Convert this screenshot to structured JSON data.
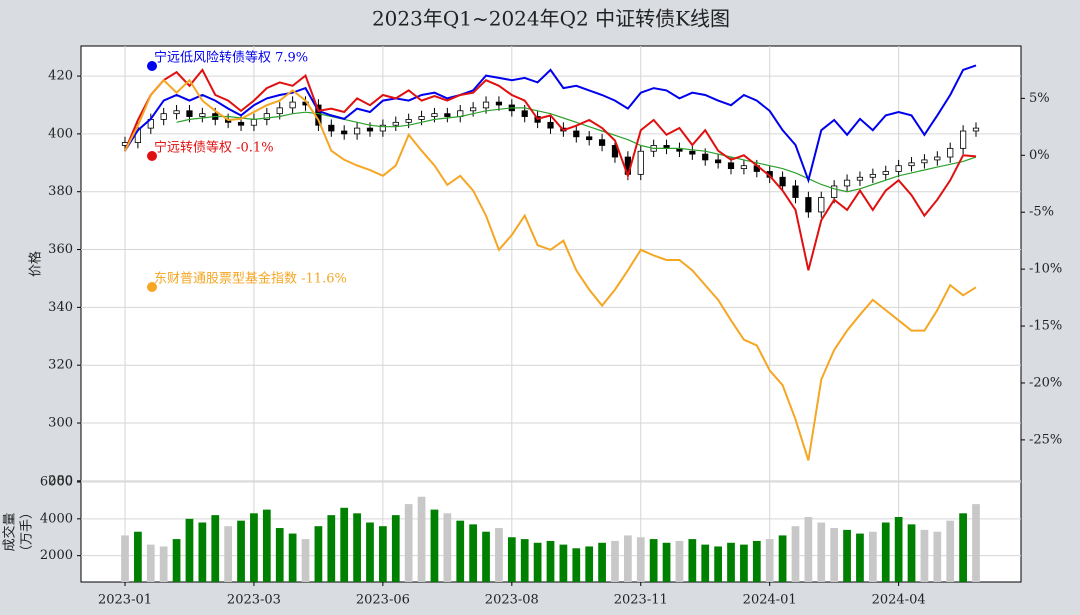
{
  "chart_data": {
    "type": "kline",
    "title": "2023年Q1~2024年Q2 中证转债K线图",
    "ylabel": "价格",
    "y3label": [
      "成交量",
      "（万手）"
    ],
    "categories": [
      "2023-01",
      null,
      null,
      null,
      null,
      null,
      null,
      null,
      null,
      null,
      "2023-03",
      null,
      null,
      null,
      null,
      null,
      null,
      null,
      null,
      null,
      "2023-06",
      null,
      null,
      null,
      null,
      null,
      null,
      null,
      null,
      null,
      "2023-08",
      null,
      null,
      null,
      null,
      null,
      null,
      null,
      null,
      null,
      "2023-11",
      null,
      null,
      null,
      null,
      null,
      null,
      null,
      null,
      null,
      "2024-01",
      null,
      null,
      null,
      null,
      null,
      null,
      null,
      null,
      null,
      "2024-04",
      null,
      null,
      null,
      null,
      null,
      null
    ],
    "ylim": [
      279.6,
      430.4
    ],
    "yticks": [
      280,
      300,
      320,
      340,
      360,
      380,
      400,
      420
    ],
    "y2lim": [
      -28.7,
      9.6
    ],
    "y2ticks": [
      {
        "value": -25,
        "label": "-25%"
      },
      {
        "value": -20,
        "label": "-20%"
      },
      {
        "value": -15,
        "label": "-15%"
      },
      {
        "value": -10,
        "label": "-10%"
      },
      {
        "value": -5,
        "label": "-5%"
      },
      {
        "value": 0,
        "label": "0%"
      },
      {
        "value": 5,
        "label": "5%"
      }
    ],
    "grid": true,
    "kline": {
      "open": [
        396,
        397,
        402,
        405,
        407,
        408,
        406,
        407,
        405,
        404,
        403,
        405,
        407,
        409,
        411,
        410,
        403,
        401,
        400,
        402,
        401,
        403,
        404,
        405,
        406,
        407,
        406,
        408,
        409,
        411,
        410,
        408,
        406,
        404,
        402,
        401,
        399,
        398,
        396,
        392,
        386,
        394,
        396,
        395,
        394,
        393,
        391,
        390,
        388,
        389,
        387,
        385,
        382,
        378,
        373,
        378,
        382,
        384,
        385,
        386,
        387,
        389,
        390,
        391,
        392,
        395,
        401
      ],
      "high": [
        399,
        404,
        407,
        409,
        410,
        410,
        409,
        409,
        407,
        406,
        407,
        409,
        411,
        413,
        413,
        412,
        405,
        403,
        404,
        404,
        405,
        406,
        407,
        408,
        409,
        409,
        410,
        411,
        413,
        413,
        412,
        410,
        408,
        406,
        404,
        403,
        401,
        400,
        398,
        394,
        396,
        398,
        398,
        397,
        396,
        395,
        393,
        392,
        391,
        391,
        389,
        387,
        384,
        380,
        380,
        384,
        386,
        387,
        388,
        389,
        391,
        392,
        393,
        394,
        397,
        403,
        404
      ],
      "low": [
        394,
        395,
        400,
        403,
        405,
        404,
        404,
        403,
        402,
        401,
        401,
        403,
        405,
        407,
        408,
        401,
        399,
        398,
        398,
        399,
        399,
        401,
        402,
        403,
        404,
        404,
        404,
        406,
        407,
        408,
        406,
        404,
        402,
        400,
        399,
        397,
        396,
        394,
        390,
        384,
        384,
        392,
        393,
        392,
        391,
        389,
        388,
        386,
        386,
        385,
        383,
        380,
        376,
        371,
        371,
        376,
        380,
        382,
        383,
        384,
        385,
        387,
        388,
        389,
        390,
        393,
        399
      ],
      "close": [
        397,
        402,
        405,
        407,
        408,
        406,
        407,
        405,
        404,
        403,
        405,
        407,
        409,
        411,
        410,
        403,
        401,
        400,
        402,
        401,
        403,
        404,
        405,
        406,
        407,
        406,
        408,
        409,
        411,
        410,
        408,
        406,
        404,
        402,
        401,
        399,
        398,
        396,
        392,
        386,
        394,
        396,
        395,
        394,
        393,
        391,
        390,
        388,
        389,
        387,
        385,
        382,
        378,
        373,
        378,
        382,
        384,
        385,
        386,
        387,
        389,
        390,
        391,
        392,
        395,
        401,
        402
      ]
    },
    "ma": {
      "color": "#2ca02c",
      "values": [
        null,
        null,
        null,
        null,
        404,
        405,
        405.5,
        406,
        406,
        405.5,
        405,
        405.5,
        406,
        407,
        407.5,
        407,
        406,
        405,
        404,
        403,
        402.5,
        402.5,
        403,
        404,
        405,
        405.5,
        406,
        407,
        408,
        408.5,
        409,
        409,
        408,
        407,
        405.5,
        404,
        402.5,
        401,
        399.5,
        398,
        396,
        395,
        395,
        395,
        394.5,
        394,
        393,
        392,
        391,
        390,
        389,
        388,
        386.5,
        384.5,
        382.5,
        381,
        380,
        381,
        382.5,
        384,
        385.5,
        386.5,
        387.5,
        388.5,
        389.5,
        390.5,
        392
      ]
    },
    "series": [
      {
        "name": "宁远低风险转债等权 7.9%",
        "color": "#0000ee",
        "axis": "y2",
        "values": [
          0.4,
          2.2,
          3.2,
          4.8,
          5.3,
          4.8,
          5.3,
          4.8,
          4.1,
          3.5,
          4.4,
          5.0,
          5.3,
          5.5,
          5.9,
          3.9,
          3.5,
          3.2,
          4.1,
          3.8,
          4.8,
          5.0,
          4.8,
          5.3,
          5.5,
          5.0,
          5.3,
          5.7,
          7.0,
          6.8,
          6.6,
          6.8,
          6.4,
          7.5,
          5.9,
          6.1,
          5.7,
          5.3,
          4.8,
          4.1,
          5.5,
          5.9,
          5.7,
          5.0,
          5.5,
          5.3,
          4.8,
          4.4,
          5.3,
          4.8,
          3.9,
          2.2,
          0.9,
          -2.2,
          2.2,
          3.1,
          1.8,
          3.2,
          2.2,
          3.5,
          3.8,
          3.5,
          1.8,
          3.5,
          5.3,
          7.5,
          7.9
        ]
      },
      {
        "name": "宁远转债等权 -0.1%",
        "color": "#e01010",
        "axis": "y2",
        "values": [
          0.4,
          3.1,
          5.3,
          6.6,
          7.3,
          6.1,
          7.5,
          5.3,
          4.8,
          3.9,
          4.8,
          5.9,
          6.4,
          6.1,
          7.0,
          3.9,
          4.1,
          3.8,
          5.0,
          4.4,
          5.3,
          5.0,
          5.7,
          4.8,
          5.2,
          4.8,
          5.3,
          5.5,
          6.6,
          6.1,
          5.3,
          4.8,
          3.2,
          3.5,
          2.2,
          2.6,
          3.1,
          2.4,
          1.3,
          -1.8,
          2.2,
          3.1,
          1.8,
          2.4,
          0.9,
          2.2,
          0.4,
          -0.4,
          0,
          -0.9,
          -1.8,
          -3.1,
          -4.8,
          -10.1,
          -5.7,
          -3.9,
          -4.8,
          -3.1,
          -4.8,
          -3.1,
          -2.2,
          -3.5,
          -5.3,
          -3.9,
          -2.2,
          0,
          -0.1
        ]
      },
      {
        "name": "东财普通股票型基金指数 -11.6%",
        "color": "#f5a623",
        "axis": "y2",
        "values": [
          0.4,
          2.6,
          5.3,
          6.6,
          5.5,
          6.6,
          4.8,
          3.9,
          3.1,
          3.2,
          3.8,
          4.4,
          4.8,
          5.7,
          4.8,
          3.1,
          0.4,
          -0.4,
          -0.9,
          -1.3,
          -1.8,
          -0.9,
          1.8,
          0.4,
          -0.9,
          -2.6,
          -1.8,
          -3.1,
          -5.3,
          -8.3,
          -7.0,
          -5.3,
          -7.9,
          -8.3,
          -7.5,
          -10.1,
          -11.8,
          -13.2,
          -11.8,
          -10.1,
          -8.3,
          -8.8,
          -9.2,
          -9.2,
          -10.1,
          -11.4,
          -12.7,
          -14.5,
          -16.2,
          -16.7,
          -18.9,
          -20.2,
          -23.2,
          -26.8,
          -19.7,
          -17.1,
          -15.4,
          -14.0,
          -12.7,
          -13.6,
          -14.5,
          -15.4,
          -15.4,
          -13.6,
          -11.4,
          -12.3,
          -11.6
        ]
      }
    ],
    "volume": {
      "ylim": [
        570,
        6000
      ],
      "yticks": [
        2000,
        4000,
        6000
      ],
      "values": [
        3100,
        3300,
        2600,
        2500,
        2900,
        4000,
        3800,
        4200,
        3600,
        3900,
        4300,
        4500,
        3500,
        3200,
        2900,
        3600,
        4200,
        4600,
        4300,
        3800,
        3600,
        4200,
        4800,
        5200,
        4500,
        4300,
        3900,
        3700,
        3300,
        3500,
        3000,
        2900,
        2700,
        2800,
        2600,
        2400,
        2500,
        2700,
        2800,
        3100,
        3000,
        2900,
        2700,
        2800,
        2900,
        2600,
        2500,
        2700,
        2600,
        2800,
        2900,
        3100,
        3600,
        4100,
        3800,
        3500,
        3400,
        3200,
        3300,
        3800,
        4100,
        3700,
        3400,
        3300,
        3900,
        4300,
        4800
      ],
      "colors": [
        "#c8c8c8",
        "#008000",
        "#c8c8c8",
        "#c8c8c8",
        "#008000",
        "#008000",
        "#008000",
        "#008000",
        "#c8c8c8",
        "#008000",
        "#008000",
        "#008000",
        "#008000",
        "#008000",
        "#c8c8c8",
        "#008000",
        "#008000",
        "#008000",
        "#008000",
        "#008000",
        "#008000",
        "#008000",
        "#c8c8c8",
        "#c8c8c8",
        "#008000",
        "#c8c8c8",
        "#008000",
        "#008000",
        "#008000",
        "#c8c8c8",
        "#008000",
        "#008000",
        "#008000",
        "#008000",
        "#008000",
        "#008000",
        "#008000",
        "#008000",
        "#c8c8c8",
        "#c8c8c8",
        "#c8c8c8",
        "#008000",
        "#008000",
        "#c8c8c8",
        "#008000",
        "#008000",
        "#008000",
        "#008000",
        "#008000",
        "#008000",
        "#c8c8c8",
        "#008000",
        "#c8c8c8",
        "#c8c8c8",
        "#c8c8c8",
        "#c8c8c8",
        "#008000",
        "#008000",
        "#c8c8c8",
        "#008000",
        "#008000",
        "#008000",
        "#c8c8c8",
        "#c8c8c8",
        "#c8c8c8",
        "#008000",
        "#c8c8c8"
      ]
    }
  }
}
